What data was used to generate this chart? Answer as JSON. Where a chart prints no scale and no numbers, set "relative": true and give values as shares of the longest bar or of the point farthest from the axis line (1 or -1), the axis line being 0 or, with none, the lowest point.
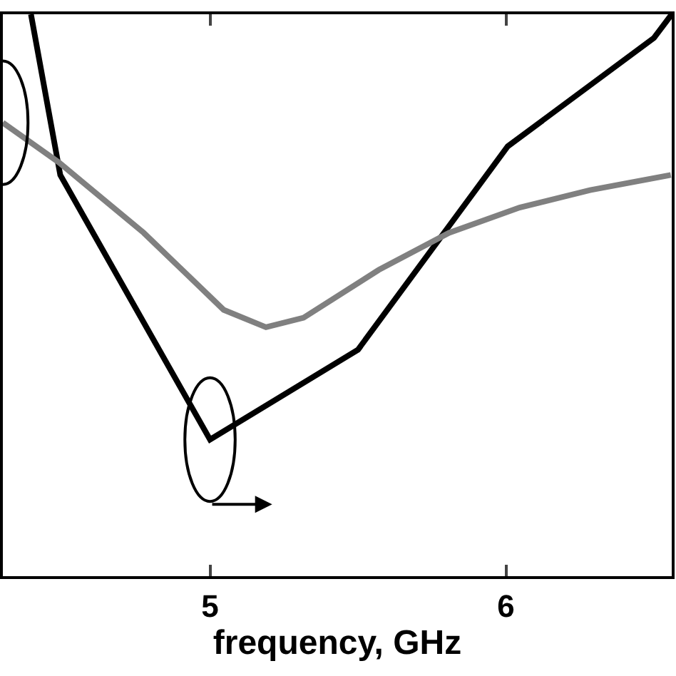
{
  "chart_data": {
    "type": "line",
    "xlabel": "frequency, GHz",
    "relative": true,
    "xlim": [
      4.3,
      6.56
    ],
    "xticks": [
      5,
      6
    ],
    "marker": "none",
    "line_style": "solid",
    "series": [
      {
        "color": "#000000",
        "x": [
          4.395,
          4.494,
          5.0,
          5.5,
          6.006,
          6.5,
          6.56
        ],
        "values": [
          1.0,
          0.714,
          0.243,
          0.403,
          0.765,
          0.958,
          1.0
        ]
      },
      {
        "color": "#808080",
        "x": [
          4.3,
          4.49,
          4.776,
          5.046,
          5.189,
          5.316,
          5.57,
          5.808,
          6.046,
          6.284,
          6.557
        ],
        "values": [
          0.807,
          0.736,
          0.611,
          0.474,
          0.443,
          0.46,
          0.545,
          0.611,
          0.656,
          0.687,
          0.714
        ]
      }
    ]
  }
}
